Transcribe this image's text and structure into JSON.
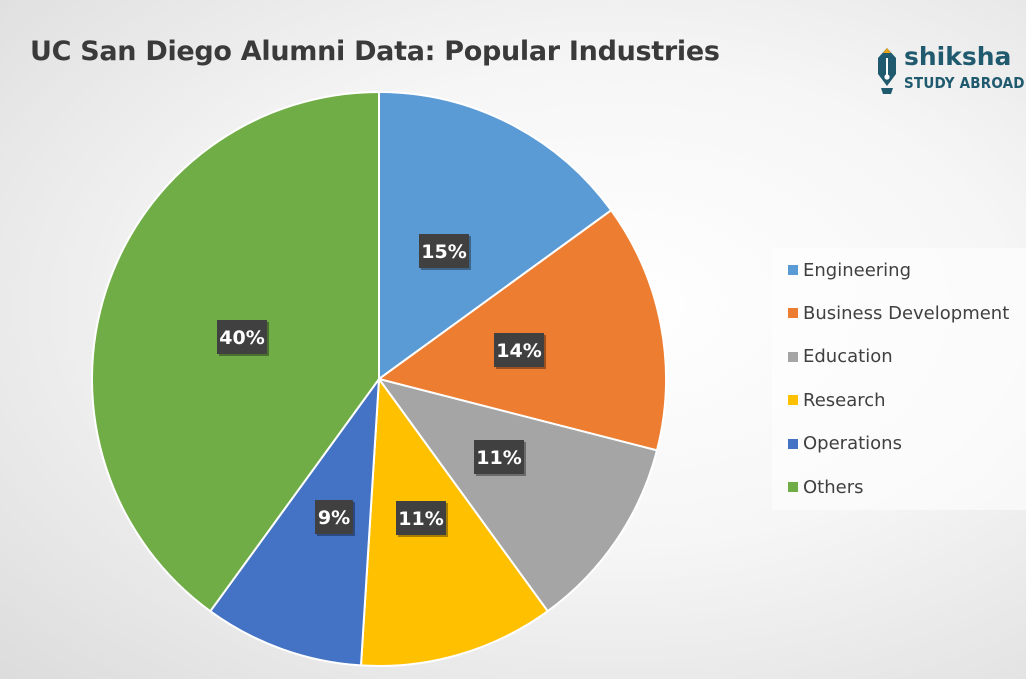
{
  "chart_data": {
    "type": "pie",
    "title": "UC San Diego Alumni Data: Popular Industries",
    "slices": [
      {
        "label": "Engineering",
        "value": 15,
        "display": "15%",
        "color": "#5b9bd5"
      },
      {
        "label": "Business Development",
        "value": 14,
        "display": "14%",
        "color": "#ed7d31"
      },
      {
        "label": "Education",
        "value": 11,
        "display": "11%",
        "color": "#a5a5a5"
      },
      {
        "label": "Research",
        "value": 11,
        "display": "11%",
        "color": "#ffc000"
      },
      {
        "label": "Operations",
        "value": 9,
        "display": "9%",
        "color": "#4472c4"
      },
      {
        "label": "Others",
        "value": 40,
        "display": "40%",
        "color": "#70ad47"
      }
    ],
    "legend_position": "right"
  },
  "logo": {
    "brand": "shiksha",
    "tagline": "STUDY ABROAD"
  }
}
